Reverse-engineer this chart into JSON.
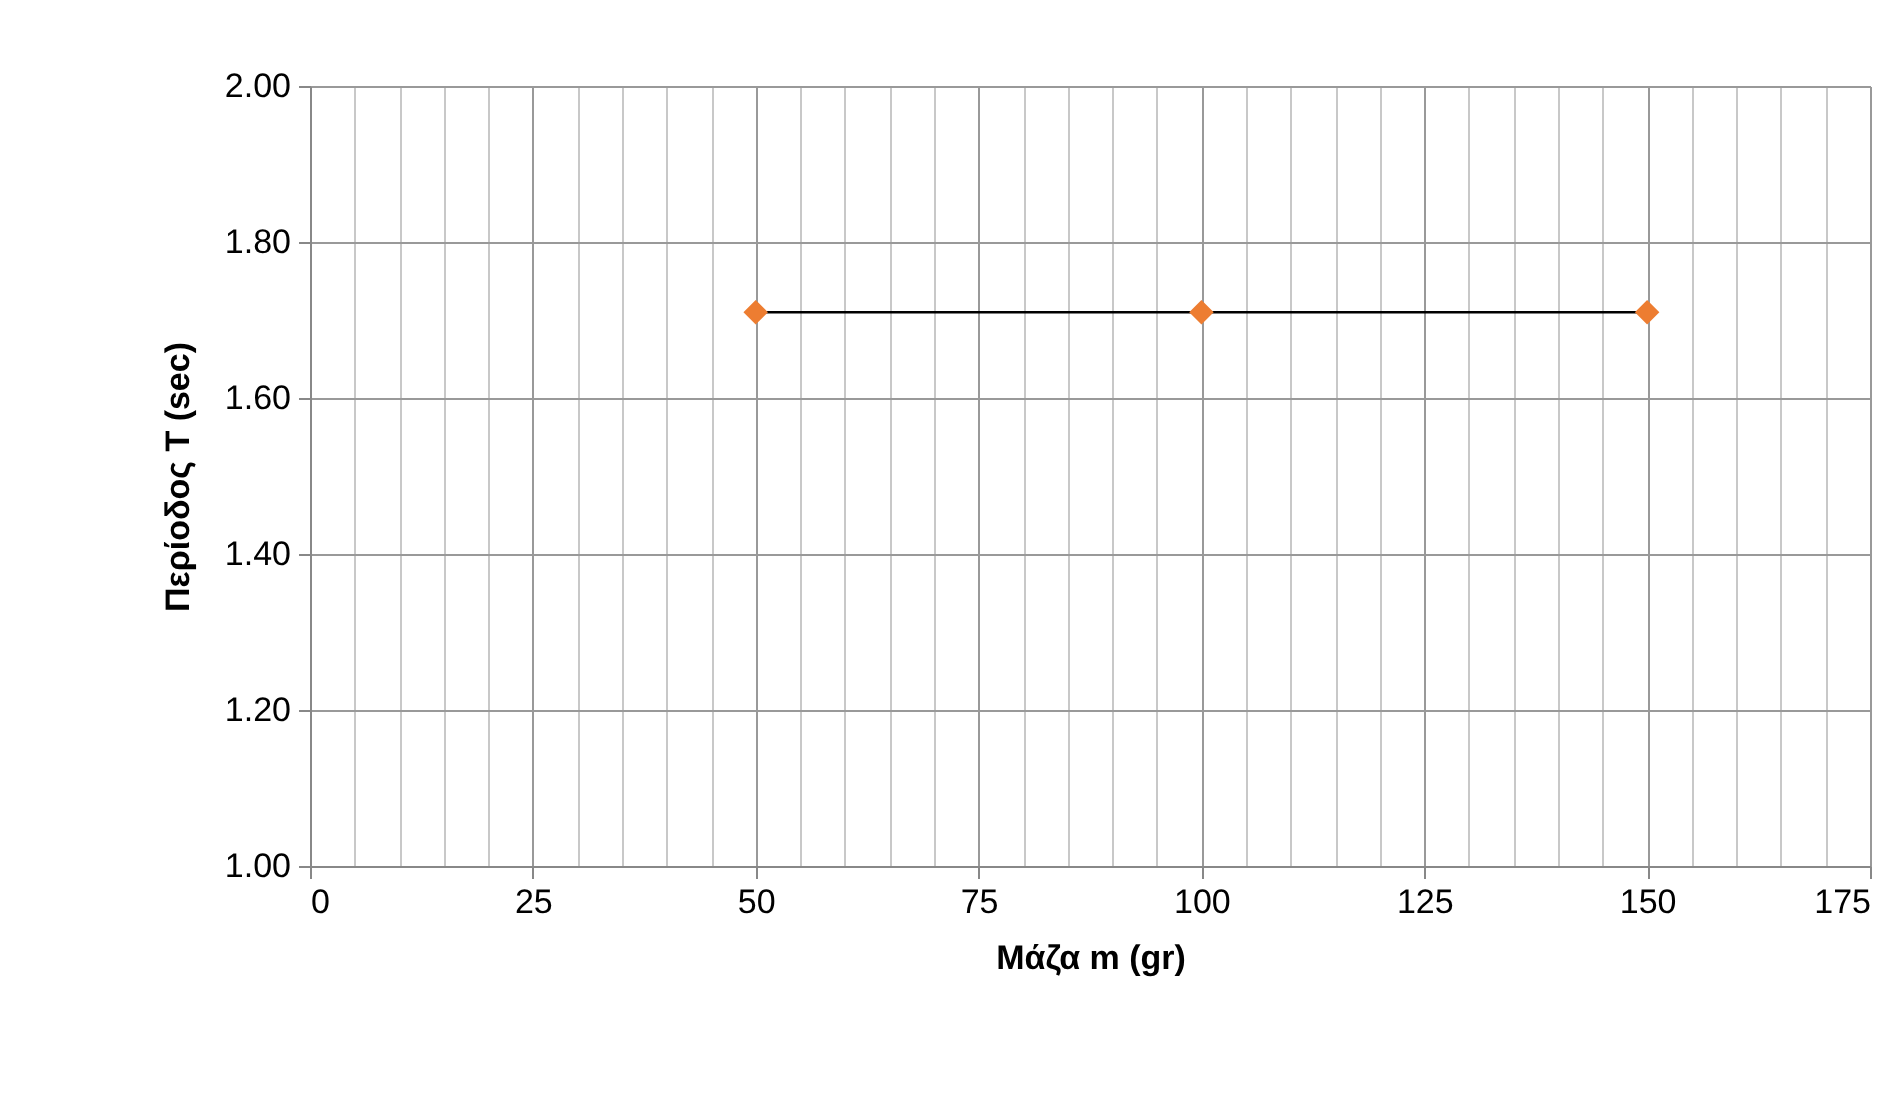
{
  "chart_data": {
    "type": "scatter",
    "xlabel": "Μάζα m (gr)",
    "ylabel": "Περίοδος T (sec)",
    "xlim": [
      0,
      175
    ],
    "xticks": [
      0,
      {
        "value": 5,
        "label": null
      },
      {
        "value": 10,
        "label": null
      },
      {
        "value": 15,
        "label": null
      },
      {
        "value": 20,
        "label": null
      },
      25,
      {
        "value": 30,
        "label": null
      },
      {
        "value": 35,
        "label": null
      },
      {
        "value": 40,
        "label": null
      },
      {
        "value": 45,
        "label": null
      },
      50,
      {
        "value": 55,
        "label": null
      },
      {
        "value": 60,
        "label": null
      },
      {
        "value": 65,
        "label": null
      },
      {
        "value": 70,
        "label": null
      },
      75,
      {
        "value": 80,
        "label": null
      },
      {
        "value": 85,
        "label": null
      },
      {
        "value": 90,
        "label": null
      },
      {
        "value": 95,
        "label": null
      },
      100,
      {
        "value": 105,
        "label": null
      },
      {
        "value": 110,
        "label": null
      },
      {
        "value": 115,
        "label": null
      },
      {
        "value": 120,
        "label": null
      },
      125,
      {
        "value": 130,
        "label": null
      },
      {
        "value": 135,
        "label": null
      },
      {
        "value": 140,
        "label": null
      },
      {
        "value": 145,
        "label": null
      },
      150,
      {
        "value": 155,
        "label": null
      },
      {
        "value": 160,
        "label": null
      },
      {
        "value": 165,
        "label": null
      },
      {
        "value": 170,
        "label": null
      },
      175
    ],
    "ylim": [
      1,
      2
    ],
    "yticks": [
      {
        "value": 1,
        "label": "1.00"
      },
      {
        "value": 1.2,
        "label": "1.20"
      },
      {
        "value": 1.4,
        "label": "1.40"
      },
      {
        "value": 1.6,
        "label": "1.60"
      },
      {
        "value": 1.8,
        "label": "1.80"
      },
      {
        "value": 2,
        "label": "2.00"
      }
    ],
    "grid": true,
    "x": [
      50,
      100,
      150
    ],
    "series": [
      {
        "type": "line",
        "color": "#000000",
        "marker": "none",
        "values": [
          1.71,
          1.71,
          1.71
        ]
      },
      {
        "color": "#ed7d31",
        "marker": "diamond",
        "values": [
          1.71,
          1.71,
          1.71
        ]
      }
    ]
  }
}
